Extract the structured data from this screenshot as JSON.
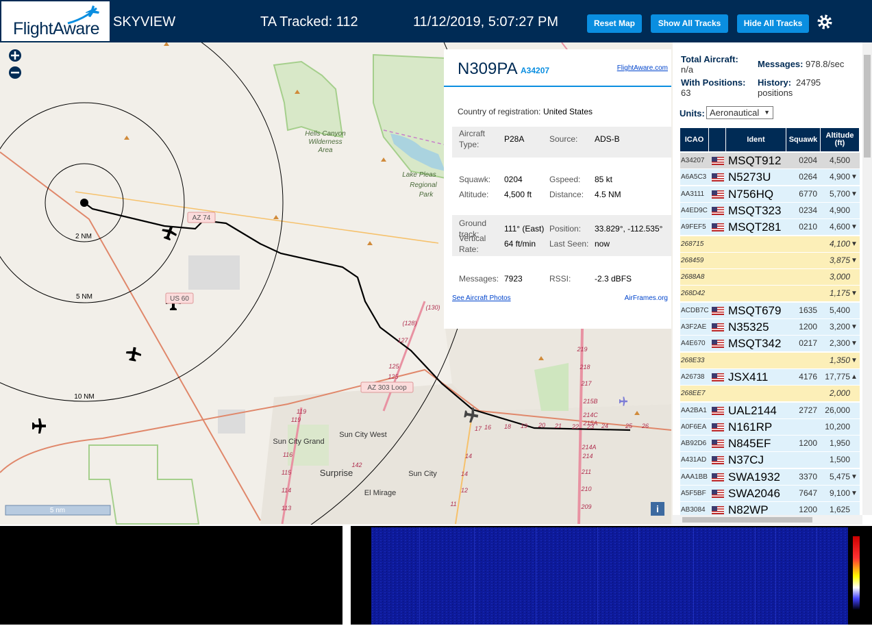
{
  "header": {
    "logo": "FlightAware",
    "app": "SKYVIEW",
    "tracked": "TA Tracked: 112",
    "datetime": "11/12/2019, 5:07:27 PM",
    "buttons": [
      "Reset Map",
      "Show All Tracks",
      "Hide All Tracks"
    ]
  },
  "map": {
    "labels": [
      "Hells Canyon",
      "Wilderness",
      "Area",
      "Lake Pleas",
      "Regional",
      "Park",
      "2 NM",
      "5 NM",
      "10 NM",
      "AZ 74",
      "US 60",
      "AZ 303 Loop",
      "Sun City Grand",
      "Sun City West",
      "Surprise",
      "Sun City",
      "El Mirage",
      "(130)",
      "(128)",
      "127",
      "125",
      "125",
      "119",
      "119",
      "116",
      "115",
      "114",
      "113",
      "142",
      "14",
      "14",
      "12",
      "11",
      "17",
      "16",
      "18",
      "19",
      "20",
      "21",
      "22",
      "23",
      "24",
      "25",
      "26",
      "219",
      "218",
      "217",
      "215B",
      "214C",
      "215A",
      "214A",
      "214",
      "211",
      "210",
      "209"
    ],
    "scale": "5 nm"
  },
  "popup": {
    "callsign": "N309PA",
    "hex": "A34207",
    "link": "FlightAware.com",
    "country_label": "Country of registration:",
    "country": "United States",
    "sections": [
      [
        [
          "Aircraft Type:",
          "P28A",
          "Source:",
          "ADS-B"
        ]
      ],
      [
        [
          "Squawk:",
          "0204",
          "Gspeed:",
          "85 kt"
        ],
        [
          "Altitude:",
          "4,500 ft",
          "Distance:",
          "4.5 NM"
        ]
      ],
      [
        [
          "Ground track:",
          "111° (East)",
          "Position:",
          "33.829°, -112.535°"
        ],
        [
          "Vertical Rate:",
          "64 ft/min",
          "Last Seen:",
          "now"
        ]
      ],
      [
        [
          "Messages:",
          "7923",
          "RSSI:",
          "-2.3 dBFS"
        ]
      ]
    ],
    "photos": "See Aircraft Photos",
    "airframes": "AirFrames.org"
  },
  "stats": {
    "total_label": "Total Aircraft:",
    "total": "n/a",
    "messages_label": "Messages:",
    "messages": "978.8/sec",
    "positions_label": "With Positions:",
    "positions": "63",
    "history_label": "History:",
    "history": "24795 positions",
    "units_label": "Units:",
    "units": "Aeronautical"
  },
  "table": {
    "headers": [
      "ICAO",
      "Ident",
      "Squawk",
      "Altitude (ft)"
    ],
    "rows": [
      {
        "icao": "A34207",
        "ident": "MSQT912",
        "squawk": "0204",
        "altitude": "4,500"
      },
      {
        "icao": "A6A5C3",
        "ident": "N5273U",
        "squawk": "0264",
        "altitude": "4,900",
        "trend": "▼"
      },
      {
        "icao": "AA3111",
        "ident": "N756HQ",
        "squawk": "6770",
        "altitude": "5,700",
        "trend": "▼"
      },
      {
        "icao": "A4ED9C",
        "ident": "MSQT323",
        "squawk": "0234",
        "altitude": "4,900"
      },
      {
        "icao": "A9FEF5",
        "ident": "MSQT281",
        "squawk": "0210",
        "altitude": "4,600",
        "trend": "▼"
      },
      {
        "icao": "268715",
        "altitude": "4,100",
        "trend": "▼"
      },
      {
        "icao": "268459",
        "altitude": "3,875",
        "trend": "▼"
      },
      {
        "icao": "2688A8",
        "altitude": "3,000"
      },
      {
        "icao": "268D42",
        "altitude": "1,175",
        "trend": "▼"
      },
      {
        "icao": "ACDB7C",
        "ident": "MSQT679",
        "squawk": "1635",
        "altitude": "5,400"
      },
      {
        "icao": "A3F2AE",
        "ident": "N35325",
        "squawk": "1200",
        "altitude": "3,200",
        "trend": "▼"
      },
      {
        "icao": "A4E670",
        "ident": "MSQT342",
        "squawk": "0217",
        "altitude": "2,300",
        "trend": "▼"
      },
      {
        "icao": "268E33",
        "altitude": "1,350",
        "trend": "▼"
      },
      {
        "icao": "A26738",
        "ident": "JSX411",
        "squawk": "4176",
        "altitude": "17,775",
        "trend": "▲"
      },
      {
        "icao": "268EE7",
        "altitude": "2,000"
      },
      {
        "icao": "AA2BA1",
        "ident": "UAL2144",
        "squawk": "2727",
        "altitude": "26,000"
      },
      {
        "icao": "A0F6EA",
        "ident": "N161RP",
        "altitude": "10,200"
      },
      {
        "icao": "AB92D6",
        "ident": "N845EF",
        "squawk": "1200",
        "altitude": "1,950"
      },
      {
        "icao": "A431AD",
        "ident": "N37CJ",
        "altitude": "1,500"
      },
      {
        "icao": "AAA1BB",
        "ident": "SWA1932",
        "squawk": "3370",
        "altitude": "5,475",
        "trend": "▼"
      },
      {
        "icao": "A5F5BF",
        "ident": "SWA2046",
        "squawk": "7647",
        "altitude": "9,100",
        "trend": "▼"
      },
      {
        "icao": "AB3084",
        "ident": "N82WP",
        "squawk": "1200",
        "altitude": "1,625"
      }
    ]
  }
}
